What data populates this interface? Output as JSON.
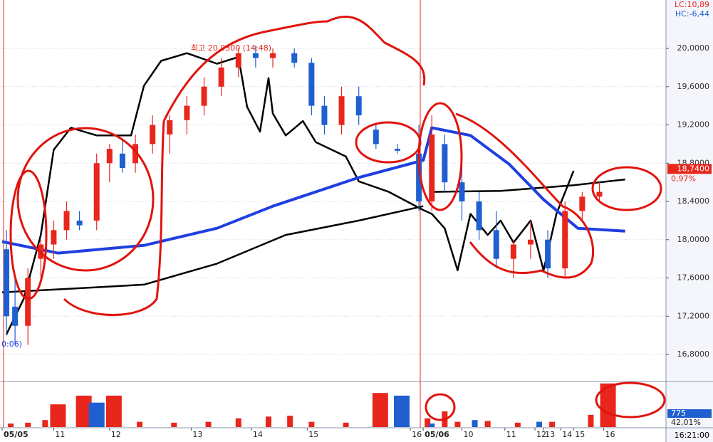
{
  "clock": "16:21:00",
  "chart_data": [
    {
      "type": "candlestick",
      "ylim": [
        16.525,
        20.506
      ],
      "xlim": [
        -0.5,
        154.5
      ],
      "yticks": [
        {
          "value": 16.8,
          "label": "16,8000"
        },
        {
          "value": 17.2,
          "label": "17,2000"
        },
        {
          "value": 17.6,
          "label": "17,6000"
        },
        {
          "value": 18.0,
          "label": "18,0000"
        },
        {
          "value": 18.4,
          "label": "18,4000"
        },
        {
          "value": 18.8,
          "label": "18,8000"
        },
        {
          "value": 19.2,
          "label": "19,2000"
        },
        {
          "value": 19.6,
          "label": "19,6000"
        },
        {
          "value": 20.0,
          "label": "20,0000"
        }
      ],
      "grid": true,
      "up_color": "#e8261c",
      "down_color": "#1f5fd0",
      "lc_label": "LC:10,89",
      "hc_label": "HC:-6,44",
      "high_label": "최고 20,0300 (14:48)",
      "left_label": "0:06)",
      "last_value": 18.74,
      "last_value_label": "18,7400",
      "change_label": "0,97%",
      "candles": [
        {
          "x": 1,
          "open": 17.9,
          "high": 18.1,
          "low": 17.0,
          "close": 17.2
        },
        {
          "x": 3,
          "open": 17.3,
          "high": 17.6,
          "low": 16.9,
          "close": 17.1
        },
        {
          "x": 6,
          "open": 17.1,
          "high": 17.7,
          "low": 16.9,
          "close": 17.6
        },
        {
          "x": 9,
          "open": 17.8,
          "high": 18.0,
          "low": 17.6,
          "close": 17.95
        },
        {
          "x": 12,
          "open": 17.95,
          "high": 18.2,
          "low": 17.8,
          "close": 18.1
        },
        {
          "x": 15,
          "open": 18.1,
          "high": 18.4,
          "low": 18.0,
          "close": 18.3
        },
        {
          "x": 18,
          "open": 18.2,
          "high": 18.3,
          "low": 18.1,
          "close": 18.15
        },
        {
          "x": 22,
          "open": 18.2,
          "high": 18.9,
          "low": 18.1,
          "close": 18.8
        },
        {
          "x": 25,
          "open": 18.8,
          "high": 19.0,
          "low": 18.6,
          "close": 18.95
        },
        {
          "x": 28,
          "open": 18.9,
          "high": 19.05,
          "low": 18.7,
          "close": 18.75
        },
        {
          "x": 31,
          "open": 18.8,
          "high": 19.1,
          "low": 18.7,
          "close": 19.0
        },
        {
          "x": 35,
          "open": 19.0,
          "high": 19.3,
          "low": 18.9,
          "close": 19.2
        },
        {
          "x": 39,
          "open": 19.1,
          "high": 19.3,
          "low": 18.9,
          "close": 19.25
        },
        {
          "x": 43,
          "open": 19.25,
          "high": 19.5,
          "low": 19.1,
          "close": 19.4
        },
        {
          "x": 47,
          "open": 19.4,
          "high": 19.7,
          "low": 19.3,
          "close": 19.6
        },
        {
          "x": 51,
          "open": 19.6,
          "high": 19.9,
          "low": 19.5,
          "close": 19.8
        },
        {
          "x": 55,
          "open": 19.8,
          "high": 20.0,
          "low": 19.7,
          "close": 19.95
        },
        {
          "x": 59,
          "open": 19.95,
          "high": 20.03,
          "low": 19.8,
          "close": 19.9
        },
        {
          "x": 63,
          "open": 19.9,
          "high": 20.0,
          "low": 19.8,
          "close": 19.95
        },
        {
          "x": 68,
          "open": 19.95,
          "high": 20.0,
          "low": 19.8,
          "close": 19.85
        },
        {
          "x": 72,
          "open": 19.85,
          "high": 19.9,
          "low": 19.3,
          "close": 19.4
        },
        {
          "x": 75,
          "open": 19.4,
          "high": 19.5,
          "low": 19.1,
          "close": 19.2
        },
        {
          "x": 79,
          "open": 19.2,
          "high": 19.6,
          "low": 19.1,
          "close": 19.5
        },
        {
          "x": 83,
          "open": 19.5,
          "high": 19.6,
          "low": 19.2,
          "close": 19.3
        },
        {
          "x": 87,
          "open": 19.15,
          "high": 19.2,
          "low": 18.95,
          "close": 19.0
        },
        {
          "x": 92,
          "open": 18.95,
          "high": 19.0,
          "low": 18.9,
          "close": 18.93
        },
        {
          "x": 97,
          "open": 18.9,
          "high": 19.2,
          "low": 18.3,
          "close": 18.4
        },
        {
          "x": 100,
          "open": 18.4,
          "high": 19.3,
          "low": 18.3,
          "close": 19.1
        },
        {
          "x": 103,
          "open": 19.0,
          "high": 19.1,
          "low": 18.5,
          "close": 18.6
        },
        {
          "x": 107,
          "open": 18.6,
          "high": 18.8,
          "low": 18.2,
          "close": 18.4
        },
        {
          "x": 111,
          "open": 18.4,
          "high": 18.5,
          "low": 18.0,
          "close": 18.1
        },
        {
          "x": 115,
          "open": 18.1,
          "high": 18.3,
          "low": 17.7,
          "close": 17.8
        },
        {
          "x": 119,
          "open": 17.8,
          "high": 18.0,
          "low": 17.6,
          "close": 17.95
        },
        {
          "x": 123,
          "open": 17.95,
          "high": 18.2,
          "low": 17.8,
          "close": 18.0
        },
        {
          "x": 127,
          "open": 18.0,
          "high": 18.1,
          "low": 17.6,
          "close": 17.7
        },
        {
          "x": 131,
          "open": 17.7,
          "high": 18.4,
          "low": 17.6,
          "close": 18.3
        },
        {
          "x": 135,
          "open": 18.3,
          "high": 18.5,
          "low": 18.2,
          "close": 18.45
        },
        {
          "x": 139,
          "open": 18.45,
          "high": 18.6,
          "low": 18.4,
          "close": 18.5
        }
      ],
      "lines": [
        {
          "color": "#000000",
          "x": [
            1,
            5,
            9,
            12,
            16,
            22,
            30,
            33,
            37,
            43,
            50,
            55,
            57,
            60,
            62,
            63,
            66,
            70,
            73,
            80,
            83,
            90,
            98,
            100,
            103,
            106,
            109,
            113,
            116,
            119,
            123,
            126,
            129,
            133
          ],
          "values": [
            17.01,
            17.38,
            18.05,
            18.94,
            19.17,
            19.09,
            19.09,
            19.61,
            19.87,
            19.95,
            19.84,
            19.91,
            19.39,
            19.13,
            19.69,
            19.32,
            19.09,
            19.24,
            19.02,
            18.87,
            18.61,
            18.5,
            18.31,
            18.27,
            18.12,
            17.68,
            18.27,
            18.05,
            18.2,
            17.97,
            18.2,
            17.68,
            18.27,
            18.72
          ]
        },
        {
          "color": "#000000",
          "x": [
            0,
            17,
            33,
            50,
            66,
            83,
            98
          ],
          "values": [
            17.45,
            17.49,
            17.53,
            17.75,
            18.05,
            18.2,
            18.35
          ]
        },
        {
          "color": "#000000",
          "x": [
            100,
            116,
            133,
            145
          ],
          "values": [
            18.5,
            18.51,
            18.57,
            18.63
          ]
        },
        {
          "color": "#1f3fe0",
          "x": [
            0,
            13,
            33,
            50,
            63,
            83,
            98,
            100,
            109,
            118,
            126,
            134,
            145
          ],
          "values": [
            17.98,
            17.86,
            17.94,
            18.12,
            18.35,
            18.65,
            18.83,
            19.17,
            19.09,
            18.79,
            18.42,
            18.12,
            18.09
          ]
        }
      ]
    },
    {
      "type": "bar",
      "ylim": [
        0,
        2570
      ],
      "xlim": [
        -0.5,
        154.5
      ],
      "xticks": [
        {
          "value": 0,
          "label": "05/05"
        },
        {
          "value": 12,
          "label": "11"
        },
        {
          "value": 25,
          "label": "12"
        },
        {
          "value": 44,
          "label": "13"
        },
        {
          "value": 58,
          "label": "14"
        },
        {
          "value": 71,
          "label": "15"
        },
        {
          "value": 95,
          "label": "16"
        },
        {
          "value": 98,
          "label": "05/06"
        },
        {
          "value": 107,
          "label": "10"
        },
        {
          "value": 117,
          "label": "11"
        },
        {
          "value": 124,
          "label": "12"
        },
        {
          "value": 126,
          "label": "13"
        },
        {
          "value": 130,
          "label": "14"
        },
        {
          "value": 133,
          "label": "15"
        },
        {
          "value": 140,
          "label": "16"
        }
      ],
      "last_value": 775,
      "ratio_label": "42,01%",
      "series": [
        {
          "color": "#e8261c",
          "x": [
            2,
            6,
            10,
            13,
            19,
            26,
            32,
            40,
            48,
            55,
            62,
            67,
            72,
            80,
            88,
            99,
            103,
            106,
            113,
            120,
            128,
            137,
            141
          ],
          "values": [
            200,
            250,
            400,
            1300,
            1800,
            1800,
            300,
            250,
            300,
            500,
            600,
            650,
            300,
            250,
            1950,
            500,
            900,
            300,
            350,
            250,
            300,
            700,
            2500
          ]
        },
        {
          "color": "#1f5fd0",
          "x": [
            22,
            93,
            100,
            110,
            125
          ],
          "values": [
            1400,
            1800,
            200,
            400,
            300
          ]
        }
      ]
    }
  ]
}
